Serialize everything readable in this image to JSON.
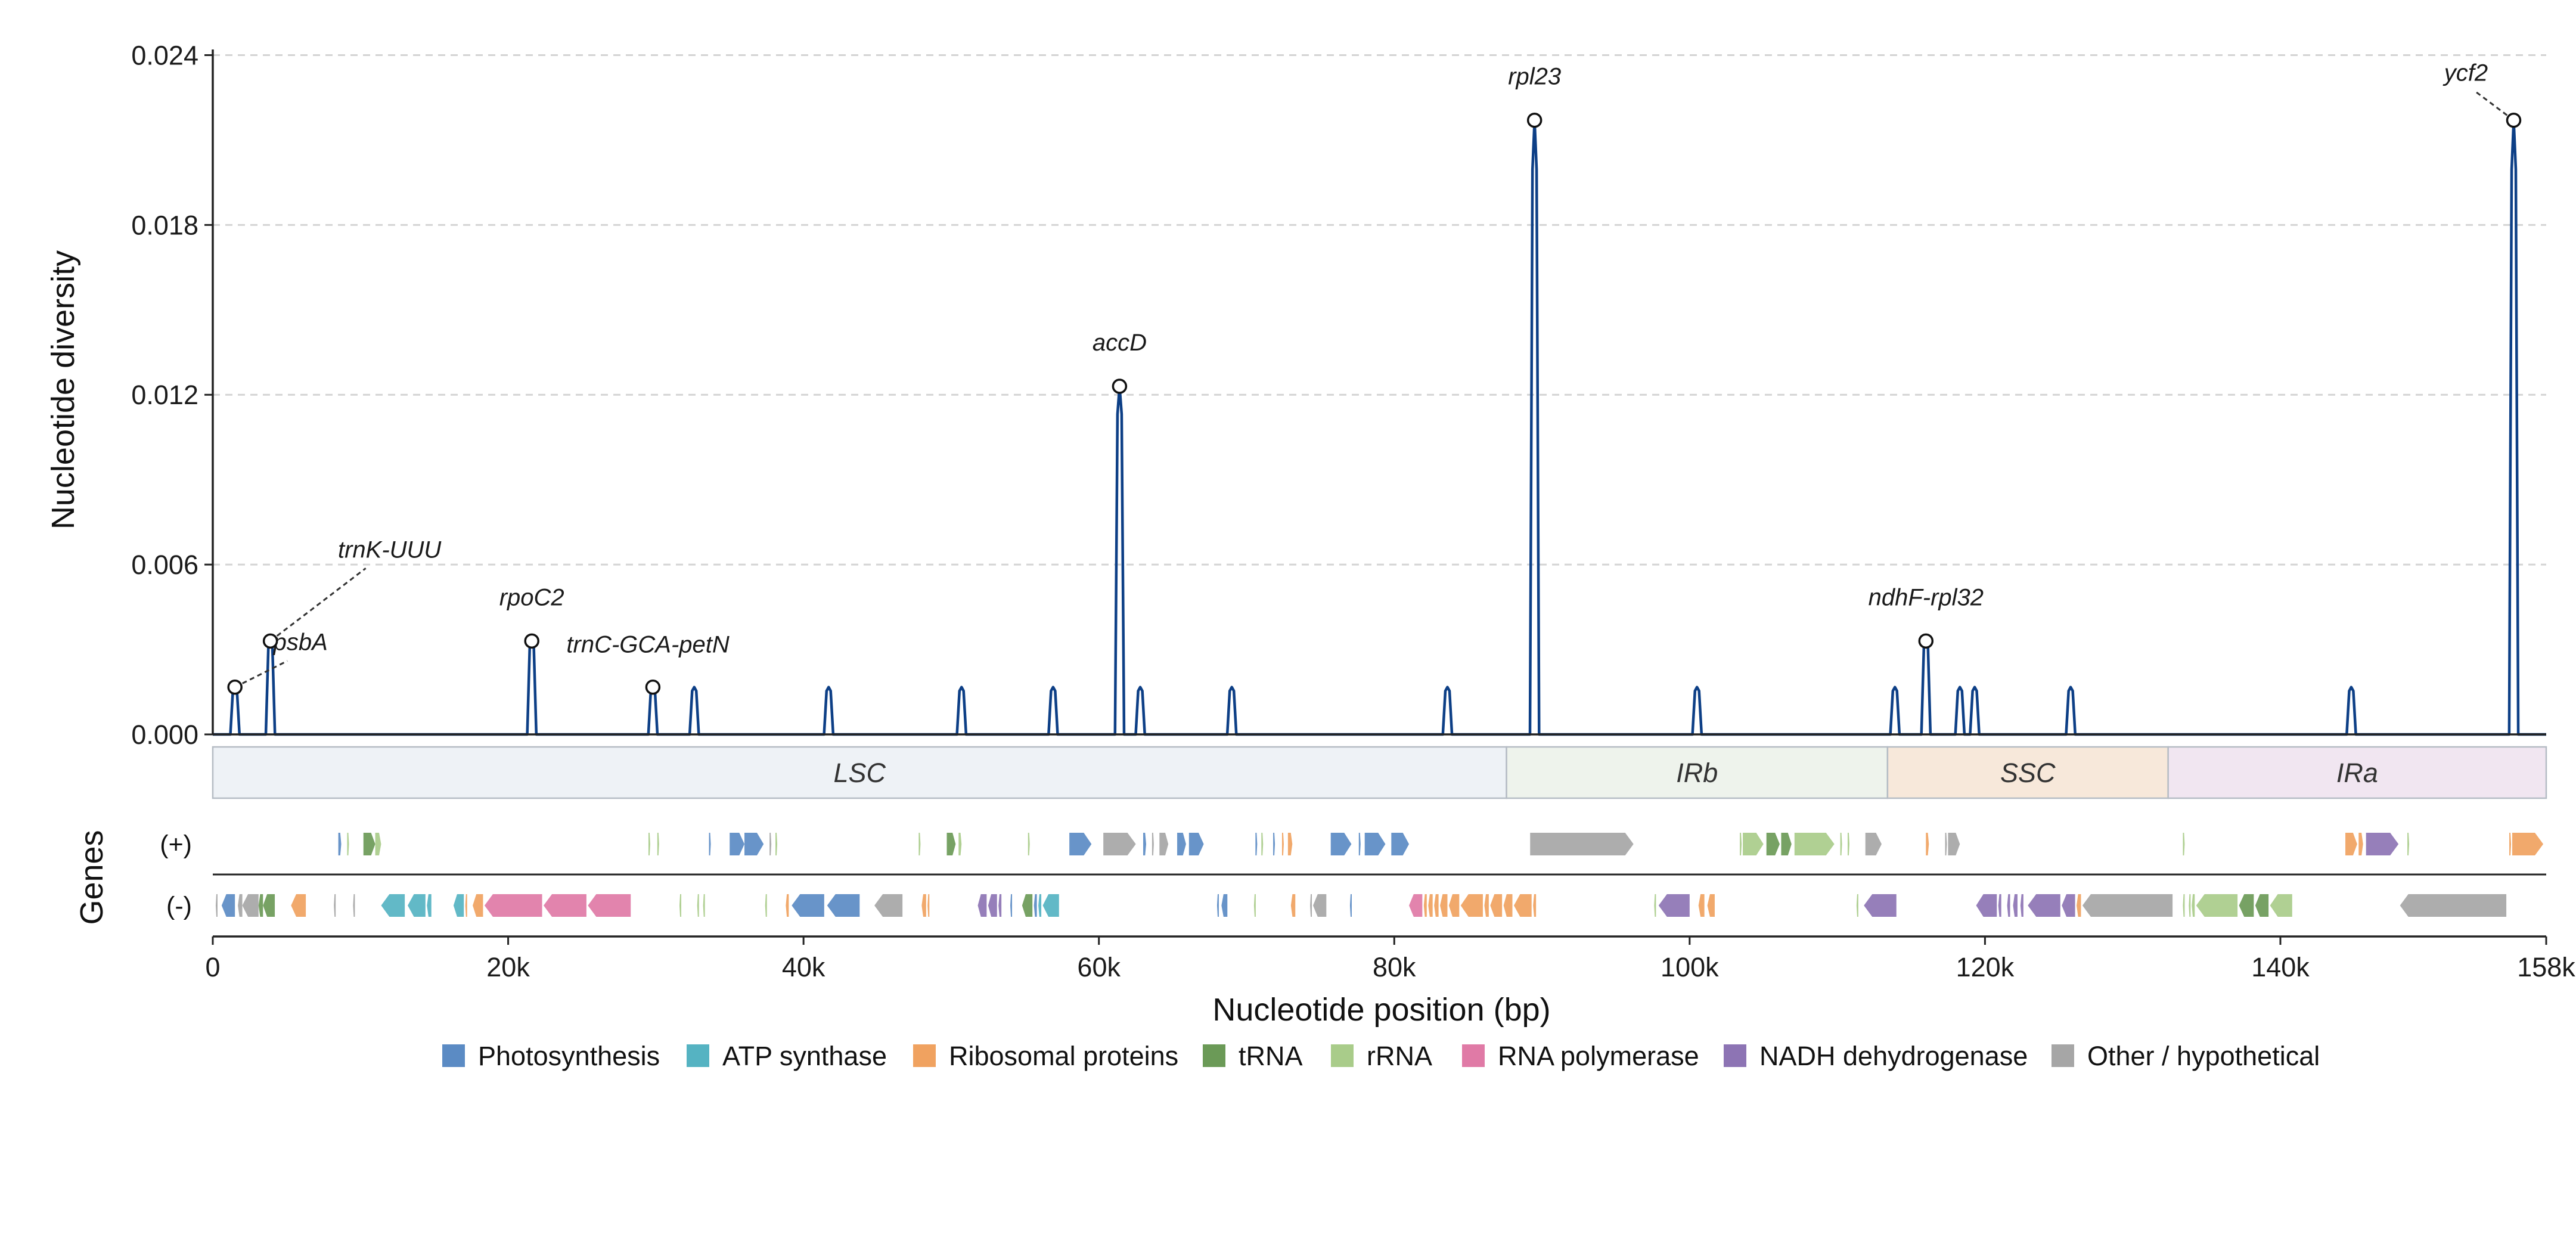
{
  "chart_data": {
    "type": "line",
    "title": "",
    "xlabel": "Nucleotide position (bp)",
    "ylabel": "Nucleotide diversity",
    "xlim": [
      0,
      158000
    ],
    "ylim": [
      0,
      0.0242
    ],
    "grid": "horizontal dashed",
    "y_ticks": [
      {
        "value": 0.0,
        "label": "0.000"
      },
      {
        "value": 0.006,
        "label": "0.006"
      },
      {
        "value": 0.012,
        "label": "0.012"
      },
      {
        "value": 0.018,
        "label": "0.018"
      },
      {
        "value": 0.024,
        "label": "0.024"
      }
    ],
    "x_ticks": [
      {
        "value": 0,
        "label": "0"
      },
      {
        "value": 20000,
        "label": "20k"
      },
      {
        "value": 40000,
        "label": "40k"
      },
      {
        "value": 60000,
        "label": "60k"
      },
      {
        "value": 80000,
        "label": "80k"
      },
      {
        "value": 100000,
        "label": "100k"
      },
      {
        "value": 120000,
        "label": "120k"
      },
      {
        "value": 140000,
        "label": "140k"
      },
      {
        "value": 158000,
        "label": "158k"
      }
    ],
    "line_color": "#0d3f86",
    "peaks": [
      {
        "x": 1500,
        "y": 0.00167
      },
      {
        "x": 3900,
        "y": 0.0033
      },
      {
        "x": 21600,
        "y": 0.0033
      },
      {
        "x": 29800,
        "y": 0.00167
      },
      {
        "x": 32600,
        "y": 0.00167
      },
      {
        "x": 41700,
        "y": 0.00167
      },
      {
        "x": 50700,
        "y": 0.00167
      },
      {
        "x": 56900,
        "y": 0.00167
      },
      {
        "x": 61400,
        "y": 0.0123
      },
      {
        "x": 62800,
        "y": 0.00167
      },
      {
        "x": 69000,
        "y": 0.00167
      },
      {
        "x": 83600,
        "y": 0.00167
      },
      {
        "x": 89500,
        "y": 0.0217
      },
      {
        "x": 100500,
        "y": 0.00167
      },
      {
        "x": 113900,
        "y": 0.00167
      },
      {
        "x": 116000,
        "y": 0.0033
      },
      {
        "x": 118300,
        "y": 0.00167
      },
      {
        "x": 119300,
        "y": 0.00167
      },
      {
        "x": 125800,
        "y": 0.00167
      },
      {
        "x": 144800,
        "y": 0.00167
      },
      {
        "x": 155800,
        "y": 0.0217
      }
    ],
    "annotations": [
      {
        "label": "psbA",
        "x": 1500,
        "y": 0.00167
      },
      {
        "label": "trnK-UUU",
        "x": 3900,
        "y": 0.0033
      },
      {
        "label": "rpoC2",
        "x": 21600,
        "y": 0.0033
      },
      {
        "label": "trnC-GCA-petN",
        "x": 29800,
        "y": 0.00167
      },
      {
        "label": "accD",
        "x": 61400,
        "y": 0.0123
      },
      {
        "label": "rpl23",
        "x": 89500,
        "y": 0.0217
      },
      {
        "label": "ndhF-rpl32",
        "x": 116000,
        "y": 0.0033
      },
      {
        "label": "ycf2",
        "x": 155800,
        "y": 0.0217
      }
    ],
    "regions": [
      {
        "label": "LSC",
        "start": 0,
        "end": 87600,
        "color": "#eef2f6"
      },
      {
        "label": "IRb",
        "start": 87600,
        "end": 113400,
        "color": "#eef3ec"
      },
      {
        "label": "SSC",
        "start": 113400,
        "end": 132400,
        "color": "#f7e8da"
      },
      {
        "label": "IRa",
        "start": 132400,
        "end": 158000,
        "color": "#f1e6f1"
      }
    ],
    "genes_label": "Genes",
    "strands": [
      {
        "label": "(+)",
        "key": "plus"
      },
      {
        "label": "(-)",
        "key": "minus"
      }
    ],
    "legend": [
      {
        "label": "Photosynthesis",
        "color": "#5b8bc4"
      },
      {
        "label": "ATP synthase",
        "color": "#55b3c2"
      },
      {
        "label": "Ribosomal proteins",
        "color": "#f0a260"
      },
      {
        "label": "tRNA",
        "color": "#6b9a57"
      },
      {
        "label": "rRNA",
        "color": "#a9cc8a"
      },
      {
        "label": "RNA polymerase",
        "color": "#e07aa6"
      },
      {
        "label": "NADH dehydrogenase",
        "color": "#8d74b4"
      },
      {
        "label": "Other / hypothetical",
        "color": "#a6a6a6"
      }
    ],
    "genes": {
      "plus": [
        {
          "s": 8500,
          "e": 8700,
          "c": "Photosynthesis"
        },
        {
          "s": 9100,
          "e": 9200,
          "c": "rRNA"
        },
        {
          "s": 10200,
          "e": 11000,
          "c": "tRNA"
        },
        {
          "s": 11000,
          "e": 11400,
          "c": "rRNA"
        },
        {
          "s": 29500,
          "e": 29600,
          "c": "rRNA"
        },
        {
          "s": 30100,
          "e": 30200,
          "c": "rRNA"
        },
        {
          "s": 33600,
          "e": 33700,
          "c": "Photosynthesis"
        },
        {
          "s": 35000,
          "e": 36000,
          "c": "Photosynthesis"
        },
        {
          "s": 36000,
          "e": 37300,
          "c": "Photosynthesis"
        },
        {
          "s": 37700,
          "e": 37800,
          "c": "Other / hypothetical"
        },
        {
          "s": 38100,
          "e": 38200,
          "c": "rRNA"
        },
        {
          "s": 47800,
          "e": 47900,
          "c": "rRNA"
        },
        {
          "s": 49700,
          "e": 50300,
          "c": "tRNA"
        },
        {
          "s": 50500,
          "e": 50700,
          "c": "rRNA"
        },
        {
          "s": 55200,
          "e": 55300,
          "c": "rRNA"
        },
        {
          "s": 58000,
          "e": 59500,
          "c": "Photosynthesis"
        },
        {
          "s": 60300,
          "e": 62500,
          "c": "Other / hypothetical"
        },
        {
          "s": 63000,
          "e": 63200,
          "c": "Photosynthesis"
        },
        {
          "s": 63600,
          "e": 63700,
          "c": "Other / hypothetical"
        },
        {
          "s": 64100,
          "e": 64700,
          "c": "Other / hypothetical"
        },
        {
          "s": 65300,
          "e": 65900,
          "c": "Photosynthesis"
        },
        {
          "s": 66100,
          "e": 67100,
          "c": "Photosynthesis"
        },
        {
          "s": 70600,
          "e": 70700,
          "c": "Photosynthesis"
        },
        {
          "s": 71000,
          "e": 71100,
          "c": "rRNA"
        },
        {
          "s": 71800,
          "e": 71900,
          "c": "Photosynthesis"
        },
        {
          "s": 72400,
          "e": 72500,
          "c": "Ribosomal proteins"
        },
        {
          "s": 72800,
          "e": 73100,
          "c": "Ribosomal proteins"
        },
        {
          "s": 75700,
          "e": 77100,
          "c": "Photosynthesis"
        },
        {
          "s": 77600,
          "e": 77700,
          "c": "Photosynthesis"
        },
        {
          "s": 78000,
          "e": 79400,
          "c": "Photosynthesis"
        },
        {
          "s": 79800,
          "e": 81000,
          "c": "Photosynthesis"
        },
        {
          "s": 89200,
          "e": 96200,
          "c": "Other / hypothetical"
        },
        {
          "s": 103400,
          "e": 103500,
          "c": "rRNA"
        },
        {
          "s": 103600,
          "e": 105000,
          "c": "rRNA"
        },
        {
          "s": 105200,
          "e": 106100,
          "c": "tRNA"
        },
        {
          "s": 106200,
          "e": 106900,
          "c": "tRNA"
        },
        {
          "s": 107100,
          "e": 109800,
          "c": "rRNA"
        },
        {
          "s": 110200,
          "e": 110300,
          "c": "rRNA"
        },
        {
          "s": 110700,
          "e": 110800,
          "c": "rRNA"
        },
        {
          "s": 111900,
          "e": 113000,
          "c": "Other / hypothetical"
        },
        {
          "s": 116000,
          "e": 116200,
          "c": "Ribosomal proteins"
        },
        {
          "s": 117300,
          "e": 117400,
          "c": "Other / hypothetical"
        },
        {
          "s": 117500,
          "e": 118300,
          "c": "Other / hypothetical"
        },
        {
          "s": 133400,
          "e": 133500,
          "c": "rRNA"
        },
        {
          "s": 144400,
          "e": 145200,
          "c": "Ribosomal proteins"
        },
        {
          "s": 145300,
          "e": 145600,
          "c": "Ribosomal proteins"
        },
        {
          "s": 145800,
          "e": 148000,
          "c": "NADH dehydrogenase"
        },
        {
          "s": 148600,
          "e": 148700,
          "c": "rRNA"
        },
        {
          "s": 155500,
          "e": 155600,
          "c": "Ribosomal proteins"
        },
        {
          "s": 155700,
          "e": 157800,
          "c": "Ribosomal proteins"
        }
      ],
      "minus": [
        {
          "s": 200,
          "e": 300,
          "c": "Other / hypothetical"
        },
        {
          "s": 600,
          "e": 1500,
          "c": "Photosynthesis"
        },
        {
          "s": 1700,
          "e": 2000,
          "c": "Other / hypothetical"
        },
        {
          "s": 2000,
          "e": 3100,
          "c": "Other / hypothetical"
        },
        {
          "s": 3100,
          "e": 3400,
          "c": "tRNA"
        },
        {
          "s": 3400,
          "e": 4200,
          "c": "tRNA"
        },
        {
          "s": 5300,
          "e": 6300,
          "c": "Ribosomal proteins"
        },
        {
          "s": 8200,
          "e": 8300,
          "c": "Other / hypothetical"
        },
        {
          "s": 9500,
          "e": 9600,
          "c": "Other / hypothetical"
        },
        {
          "s": 11400,
          "e": 13000,
          "c": "ATP synthase"
        },
        {
          "s": 13200,
          "e": 14400,
          "c": "ATP synthase"
        },
        {
          "s": 14500,
          "e": 14800,
          "c": "ATP synthase"
        },
        {
          "s": 16300,
          "e": 17000,
          "c": "ATP synthase"
        },
        {
          "s": 17100,
          "e": 17200,
          "c": "Ribosomal proteins"
        },
        {
          "s": 17600,
          "e": 18300,
          "c": "Ribosomal proteins"
        },
        {
          "s": 18400,
          "e": 22300,
          "c": "RNA polymerase"
        },
        {
          "s": 22400,
          "e": 25300,
          "c": "RNA polymerase"
        },
        {
          "s": 25400,
          "e": 28300,
          "c": "RNA polymerase"
        },
        {
          "s": 31600,
          "e": 31700,
          "c": "rRNA"
        },
        {
          "s": 32800,
          "e": 32900,
          "c": "rRNA"
        },
        {
          "s": 33200,
          "e": 33300,
          "c": "rRNA"
        },
        {
          "s": 37400,
          "e": 37500,
          "c": "rRNA"
        },
        {
          "s": 38800,
          "e": 39000,
          "c": "Ribosomal proteins"
        },
        {
          "s": 39200,
          "e": 41400,
          "c": "Photosynthesis"
        },
        {
          "s": 41600,
          "e": 43800,
          "c": "Photosynthesis"
        },
        {
          "s": 44800,
          "e": 46700,
          "c": "Other / hypothetical"
        },
        {
          "s": 48000,
          "e": 48300,
          "c": "Ribosomal proteins"
        },
        {
          "s": 48400,
          "e": 48500,
          "c": "Ribosomal proteins"
        },
        {
          "s": 51800,
          "e": 52400,
          "c": "NADH dehydrogenase"
        },
        {
          "s": 52500,
          "e": 53100,
          "c": "NADH dehydrogenase"
        },
        {
          "s": 53200,
          "e": 53400,
          "c": "NADH dehydrogenase"
        },
        {
          "s": 54000,
          "e": 54100,
          "c": "Photosynthesis"
        },
        {
          "s": 54800,
          "e": 55500,
          "c": "tRNA"
        },
        {
          "s": 55600,
          "e": 55800,
          "c": "Photosynthesis"
        },
        {
          "s": 55900,
          "e": 56100,
          "c": "ATP synthase"
        },
        {
          "s": 56200,
          "e": 57300,
          "c": "ATP synthase"
        },
        {
          "s": 68000,
          "e": 68100,
          "c": "Photosynthesis"
        },
        {
          "s": 68300,
          "e": 68700,
          "c": "Photosynthesis"
        },
        {
          "s": 70500,
          "e": 70600,
          "c": "rRNA"
        },
        {
          "s": 73000,
          "e": 73300,
          "c": "Ribosomal proteins"
        },
        {
          "s": 74300,
          "e": 74400,
          "c": "Other / hypothetical"
        },
        {
          "s": 74500,
          "e": 75400,
          "c": "Other / hypothetical"
        },
        {
          "s": 77000,
          "e": 77100,
          "c": "Photosynthesis"
        },
        {
          "s": 81000,
          "e": 81900,
          "c": "RNA polymerase"
        },
        {
          "s": 82000,
          "e": 82200,
          "c": "Ribosomal proteins"
        },
        {
          "s": 82300,
          "e": 82600,
          "c": "Ribosomal proteins"
        },
        {
          "s": 82700,
          "e": 83000,
          "c": "Ribosomal proteins"
        },
        {
          "s": 83100,
          "e": 83600,
          "c": "Ribosomal proteins"
        },
        {
          "s": 83700,
          "e": 84400,
          "c": "Ribosomal proteins"
        },
        {
          "s": 84500,
          "e": 86000,
          "c": "Ribosomal proteins"
        },
        {
          "s": 86100,
          "e": 86400,
          "c": "Ribosomal proteins"
        },
        {
          "s": 86500,
          "e": 87300,
          "c": "Ribosomal proteins"
        },
        {
          "s": 87400,
          "e": 88000,
          "c": "Ribosomal proteins"
        },
        {
          "s": 88100,
          "e": 89300,
          "c": "Ribosomal proteins"
        },
        {
          "s": 89400,
          "e": 89600,
          "c": "Ribosomal proteins"
        },
        {
          "s": 97600,
          "e": 97700,
          "c": "rRNA"
        },
        {
          "s": 97900,
          "e": 100000,
          "c": "NADH dehydrogenase"
        },
        {
          "s": 100600,
          "e": 101000,
          "c": "Ribosomal proteins"
        },
        {
          "s": 101200,
          "e": 101700,
          "c": "Ribosomal proteins"
        },
        {
          "s": 111300,
          "e": 111400,
          "c": "rRNA"
        },
        {
          "s": 111800,
          "e": 114000,
          "c": "NADH dehydrogenase"
        },
        {
          "s": 119400,
          "e": 120800,
          "c": "NADH dehydrogenase"
        },
        {
          "s": 120900,
          "e": 121100,
          "c": "NADH dehydrogenase"
        },
        {
          "s": 121500,
          "e": 121700,
          "c": "NADH dehydrogenase"
        },
        {
          "s": 121900,
          "e": 122200,
          "c": "NADH dehydrogenase"
        },
        {
          "s": 122400,
          "e": 122600,
          "c": "NADH dehydrogenase"
        },
        {
          "s": 122900,
          "e": 125100,
          "c": "NADH dehydrogenase"
        },
        {
          "s": 125200,
          "e": 126100,
          "c": "NADH dehydrogenase"
        },
        {
          "s": 126200,
          "e": 126500,
          "c": "Ribosomal proteins"
        },
        {
          "s": 126600,
          "e": 132700,
          "c": "Other / hypothetical"
        },
        {
          "s": 133400,
          "e": 133500,
          "c": "rRNA"
        },
        {
          "s": 133800,
          "e": 133900,
          "c": "rRNA"
        },
        {
          "s": 134000,
          "e": 134200,
          "c": "rRNA"
        },
        {
          "s": 134300,
          "e": 137100,
          "c": "rRNA"
        },
        {
          "s": 137200,
          "e": 138200,
          "c": "tRNA"
        },
        {
          "s": 138300,
          "e": 139200,
          "c": "tRNA"
        },
        {
          "s": 139300,
          "e": 140800,
          "c": "rRNA"
        },
        {
          "s": 148100,
          "e": 155300,
          "c": "Other / hypothetical"
        }
      ]
    }
  }
}
